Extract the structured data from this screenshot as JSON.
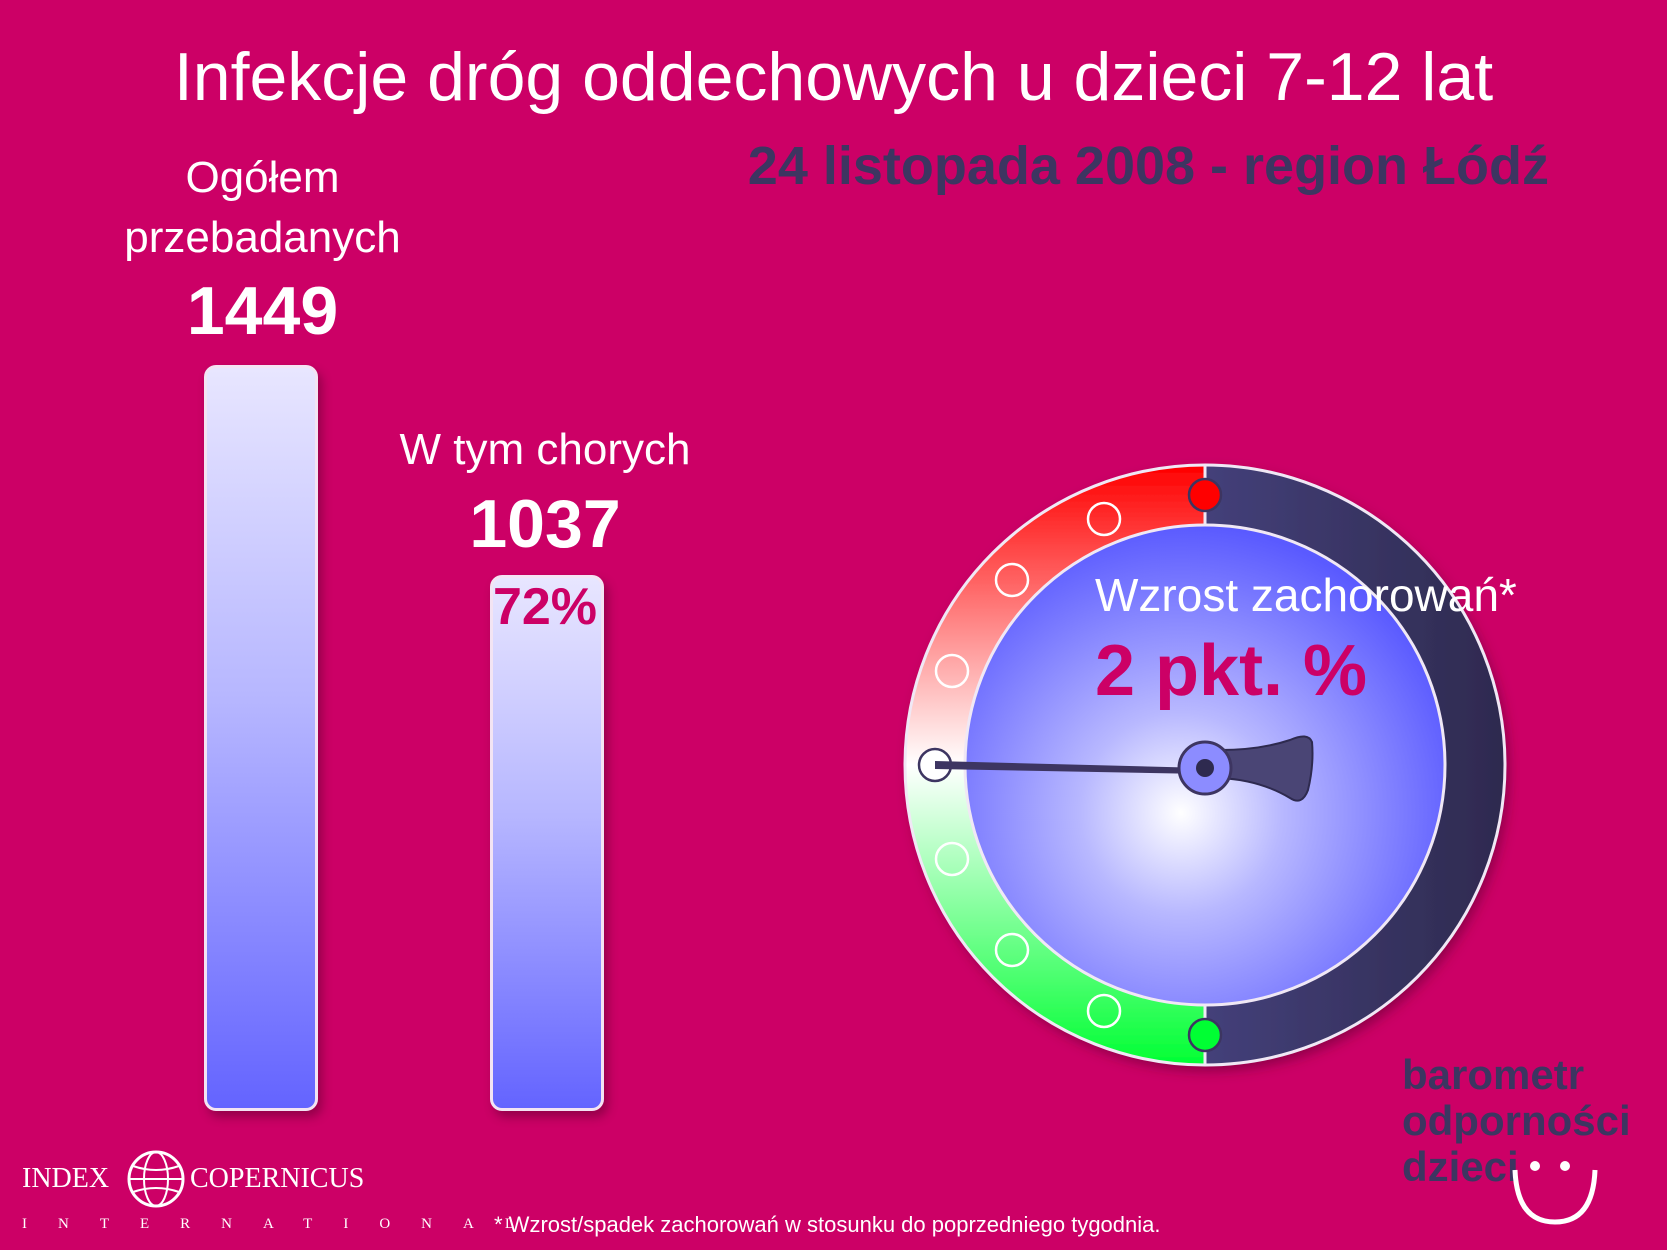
{
  "title": "Infekcje dróg oddechowych u dzieci 7-12 lat",
  "subtitle": "24 listopada 2008 - region Łódź",
  "chart_data": {
    "type": "bar",
    "categories": [
      "Ogółem przebadanych",
      "W tym chorych"
    ],
    "values": [
      1449,
      1037
    ],
    "series": [
      {
        "values": [
          1449,
          1037
        ]
      }
    ],
    "data_labels": [
      "1449",
      "1037"
    ],
    "share_label": "72%",
    "ylim": [
      0,
      1449
    ],
    "grid": false,
    "gauge": {
      "label": "Wzrost zachorowań*",
      "value_text": "2 pkt. %",
      "value": 2,
      "needle_position": "left (horizontal)",
      "ring_colors": [
        "#00ff33",
        "#ffffff",
        "#ff0000"
      ],
      "face_color": "#6666ff"
    }
  },
  "bars": {
    "total_label_line1": "Ogółem",
    "total_label_line2": "przebadanych",
    "total_value": "1449",
    "sick_label": "W tym chorych",
    "sick_value": "1037",
    "sick_pct": "72%"
  },
  "gauge_text": {
    "label": "Wzrost zachorowań*",
    "value": "2 pkt. %"
  },
  "footnote": "* Wzrost/spadek zachorowań w stosunku do poprzedniego tygodnia.",
  "brand": {
    "line1": "barometr",
    "line2": "odporności",
    "line3": "dzieci"
  },
  "logo": {
    "left": "INDEX",
    "right": "COPERNICUS",
    "sub": "INTERNATIONAL"
  },
  "colors": {
    "background": "#cc0066",
    "accent_dark": "#3d3561",
    "bar_bottom": "#6464ff",
    "bar_top": "#e8e6ff"
  }
}
